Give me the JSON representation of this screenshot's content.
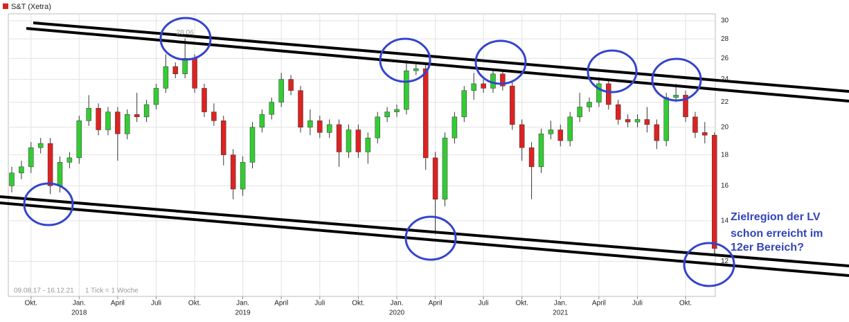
{
  "chart_data": {
    "type": "candlestick",
    "title": "S&T (Xetra)",
    "legend_color": "#dd2222",
    "up_color": "#33cc33",
    "down_color": "#dd2222",
    "period": "09.08.17 - 16.12.21",
    "tick_note": "1 Tick = 1 Woche",
    "peak_label": 28.06,
    "annotation": [
      "Zielregion der LV",
      "schon erreicht im",
      "12er Bereich?"
    ],
    "log_scale": true,
    "grid": true,
    "ylim": [
      10.5,
      30.8
    ],
    "yticks": [
      12,
      14,
      16,
      18,
      20,
      22,
      24,
      26,
      28,
      30
    ],
    "categories": [
      null,
      null,
      "Okt.",
      null,
      null,
      null,
      null,
      "Jan.",
      null,
      null,
      null,
      "April",
      null,
      null,
      null,
      "Juli",
      null,
      null,
      null,
      "Okt.",
      null,
      null,
      null,
      null,
      "Jan.",
      null,
      null,
      null,
      "April",
      null,
      null,
      null,
      "Juli",
      null,
      null,
      null,
      "Okt.",
      null,
      null,
      null,
      "Jan.",
      null,
      null,
      null,
      "April",
      null,
      null,
      null,
      null,
      "Juli",
      null,
      null,
      null,
      "Okt.",
      null,
      null,
      null,
      "Jan.",
      null,
      null,
      null,
      "April",
      null,
      null,
      null,
      "Juli",
      null,
      null,
      null,
      null,
      "Okt.",
      null,
      null,
      null
    ],
    "years": [
      null,
      null,
      null,
      null,
      null,
      null,
      null,
      "2018",
      null,
      null,
      null,
      null,
      null,
      null,
      null,
      null,
      null,
      null,
      null,
      null,
      null,
      null,
      null,
      null,
      "2019",
      null,
      null,
      null,
      null,
      null,
      null,
      null,
      null,
      null,
      null,
      null,
      null,
      null,
      null,
      null,
      "2020",
      null,
      null,
      null,
      null,
      null,
      null,
      null,
      null,
      null,
      null,
      null,
      null,
      null,
      null,
      null,
      null,
      "2021",
      null,
      null,
      null,
      null,
      null,
      null,
      null,
      null,
      null,
      null,
      null,
      null,
      null,
      null,
      null,
      null
    ],
    "open": [
      16.0,
      16.8,
      17.2,
      18.5,
      18.8,
      16.0,
      17.5,
      17.8,
      20.5,
      21.5,
      19.8,
      21.2,
      19.5,
      21.0,
      20.8,
      21.8,
      23.2,
      25.2,
      24.5,
      26.0,
      23.2,
      21.2,
      20.5,
      18.0,
      15.8,
      17.5,
      20.0,
      21.0,
      22.0,
      24.0,
      23.0,
      20.0,
      20.5,
      19.6,
      20.2,
      18.2,
      19.8,
      18.2,
      19.2,
      20.8,
      21.2,
      21.4,
      24.8,
      25.0,
      17.8,
      15.2,
      19.2,
      20.8,
      23.0,
      23.6,
      23.2,
      24.5,
      23.4,
      20.2,
      18.5,
      17.2,
      19.5,
      19.8,
      19.0,
      20.8,
      21.6,
      22.0,
      23.6,
      21.8,
      20.6,
      20.4,
      20.6,
      20.2,
      19.0,
      22.4,
      22.6,
      20.8,
      19.6,
      19.4
    ],
    "high": [
      17.2,
      17.6,
      18.9,
      19.2,
      19.2,
      17.9,
      18.2,
      20.9,
      22.6,
      21.9,
      21.6,
      21.6,
      21.4,
      22.8,
      22.2,
      23.6,
      26.4,
      25.6,
      28.06,
      26.4,
      23.6,
      21.9,
      20.9,
      18.4,
      17.9,
      20.4,
      21.4,
      22.4,
      24.6,
      24.4,
      23.4,
      21.4,
      20.9,
      20.6,
      20.6,
      20.2,
      20.2,
      19.6,
      21.2,
      21.6,
      21.8,
      25.8,
      25.4,
      25.4,
      18.2,
      19.6,
      21.2,
      23.4,
      24.6,
      24.0,
      24.9,
      24.9,
      23.8,
      20.6,
      18.9,
      19.9,
      20.5,
      20.2,
      21.2,
      22.8,
      22.4,
      24.2,
      24.0,
      22.2,
      21.0,
      21.0,
      21.6,
      20.6,
      22.8,
      23.6,
      23.0,
      21.2,
      20.4,
      19.6
    ],
    "low": [
      15.6,
      16.4,
      16.8,
      18.1,
      15.5,
      15.6,
      17.1,
      17.4,
      20.1,
      19.4,
      19.4,
      17.6,
      19.1,
      20.4,
      20.4,
      21.4,
      22.8,
      24.1,
      24.1,
      22.8,
      20.8,
      20.1,
      17.3,
      15.2,
      15.4,
      17.1,
      19.6,
      20.6,
      21.6,
      22.6,
      19.6,
      19.4,
      19.2,
      19.2,
      17.2,
      17.8,
      17.8,
      17.4,
      18.8,
      20.4,
      20.8,
      21.0,
      24.4,
      17.0,
      13.3,
      14.8,
      18.8,
      20.4,
      22.2,
      22.8,
      22.8,
      23.0,
      19.8,
      17.6,
      15.2,
      16.8,
      19.1,
      18.6,
      18.6,
      20.4,
      21.2,
      21.6,
      21.4,
      20.2,
      20.0,
      20.0,
      19.6,
      18.4,
      18.6,
      22.0,
      20.4,
      19.2,
      18.8,
      12.3
    ],
    "close": [
      16.8,
      17.2,
      18.5,
      18.8,
      16.0,
      17.5,
      17.8,
      20.5,
      21.5,
      19.8,
      21.2,
      19.5,
      21.0,
      20.8,
      21.8,
      23.2,
      25.2,
      24.5,
      26.0,
      23.2,
      21.2,
      20.5,
      18.0,
      15.8,
      17.5,
      20.0,
      21.0,
      22.0,
      24.0,
      23.0,
      20.0,
      20.5,
      19.6,
      20.2,
      18.2,
      19.8,
      18.2,
      19.2,
      20.8,
      21.2,
      21.4,
      24.8,
      25.0,
      17.8,
      15.2,
      19.2,
      20.8,
      23.0,
      23.6,
      23.2,
      24.5,
      23.4,
      20.2,
      18.5,
      17.2,
      19.5,
      19.8,
      19.0,
      20.8,
      21.6,
      22.0,
      23.6,
      21.8,
      20.6,
      20.4,
      20.6,
      20.2,
      19.0,
      22.4,
      22.6,
      20.8,
      19.6,
      19.4,
      12.6
    ]
  }
}
